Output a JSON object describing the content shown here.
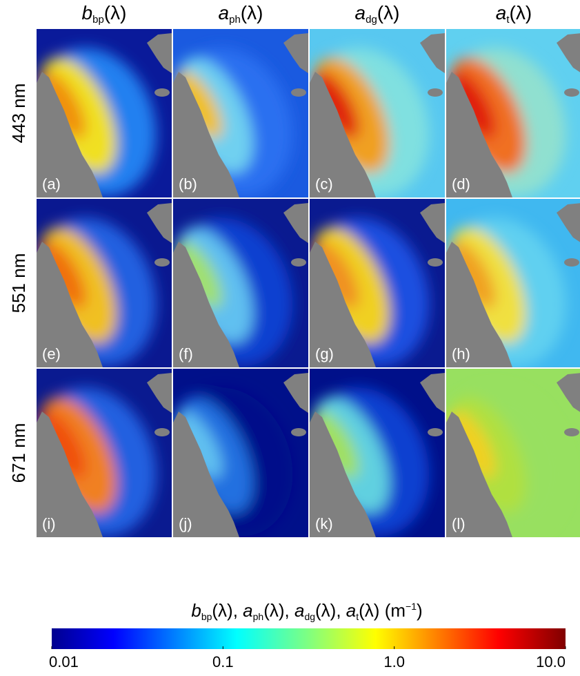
{
  "columns": [
    {
      "symbol": "b",
      "subscript": "bp",
      "suffix": "(λ)"
    },
    {
      "symbol": "a",
      "subscript": "ph",
      "suffix": "(λ)"
    },
    {
      "symbol": "a",
      "subscript": "dg",
      "suffix": "(λ)"
    },
    {
      "symbol": "a",
      "subscript": "t",
      "suffix": "(λ)"
    }
  ],
  "rows": [
    "443 nm",
    "551 nm",
    "671 nm"
  ],
  "panels": [
    "(a)",
    "(b)",
    "(c)",
    "(d)",
    "(e)",
    "(f)",
    "(g)",
    "(h)",
    "(i)",
    "(j)",
    "(k)",
    "(l)"
  ],
  "colorbar": {
    "label": [
      {
        "symbol": "b",
        "subscript": "bp",
        "suffix": "(λ), "
      },
      {
        "symbol": "a",
        "subscript": "ph",
        "suffix": "(λ), "
      },
      {
        "symbol": "a",
        "subscript": "dg",
        "suffix": "(λ), "
      },
      {
        "symbol": "a",
        "subscript": "t",
        "suffix": "(λ) "
      }
    ],
    "unit": {
      "base": "(m",
      "superscript": "−1",
      "end": ")"
    },
    "lim": [
      0.01,
      10
    ],
    "scale": "log",
    "ticks": [
      0.01,
      0.1,
      {
        "value": 1,
        "label": "1.0"
      },
      {
        "value": 10,
        "label": "10.0"
      }
    ]
  }
}
